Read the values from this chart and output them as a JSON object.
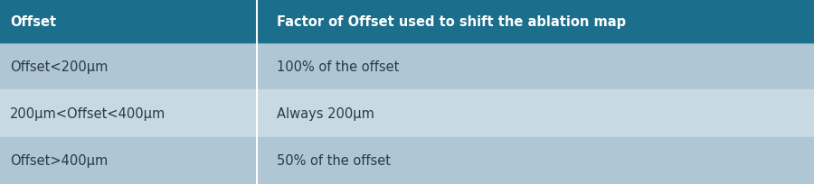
{
  "header": [
    "Offset",
    "Factor of Offset used to shift the ablation map"
  ],
  "rows": [
    [
      "Offset<200μm",
      "100% of the offset"
    ],
    [
      "200μm<Offset<400μm",
      "Always 200μm"
    ],
    [
      "Offset>400μm",
      "50% of the offset"
    ]
  ],
  "header_bg": "#1b6e8c",
  "row_bg_1": "#afc6d4",
  "row_bg_2": "#c8d9e4",
  "row_bg_3": "#afc6d4",
  "header_text_color": "#ffffff",
  "row_text_color": "#2a3a4a",
  "col_split": 0.315,
  "header_fontsize": 10.5,
  "row_fontsize": 10.5,
  "fig_width": 9.0,
  "fig_height": 2.05,
  "dpi": 100
}
